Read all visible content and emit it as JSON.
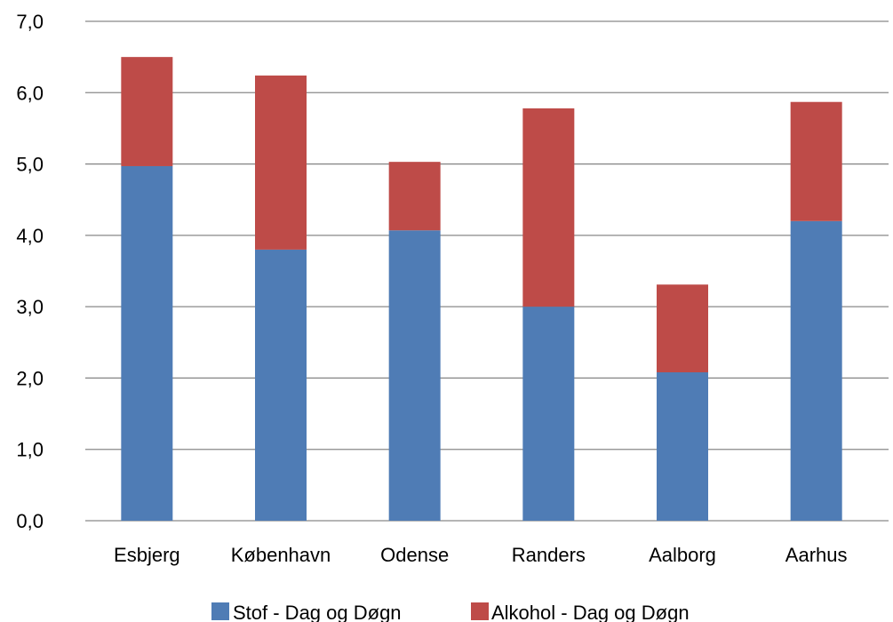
{
  "chart_data": {
    "type": "bar",
    "stacked": true,
    "categories": [
      "Esbjerg",
      "København",
      "Odense",
      "Randers",
      "Aalborg",
      "Aarhus"
    ],
    "series": [
      {
        "name": "Stof - Dag og Døgn",
        "color": "#4f7cb5",
        "values": [
          4.97,
          3.8,
          4.07,
          3.0,
          2.08,
          4.2
        ]
      },
      {
        "name": "Alkohol - Dag og Døgn",
        "color": "#be4b48",
        "values": [
          1.53,
          2.44,
          0.96,
          2.78,
          1.23,
          1.67
        ]
      }
    ],
    "y_ticks": [
      "0,0",
      "1,0",
      "2,0",
      "3,0",
      "4,0",
      "5,0",
      "6,0",
      "7,0"
    ],
    "ylim": [
      0,
      7
    ],
    "grid": true,
    "legend_position": "bottom"
  }
}
